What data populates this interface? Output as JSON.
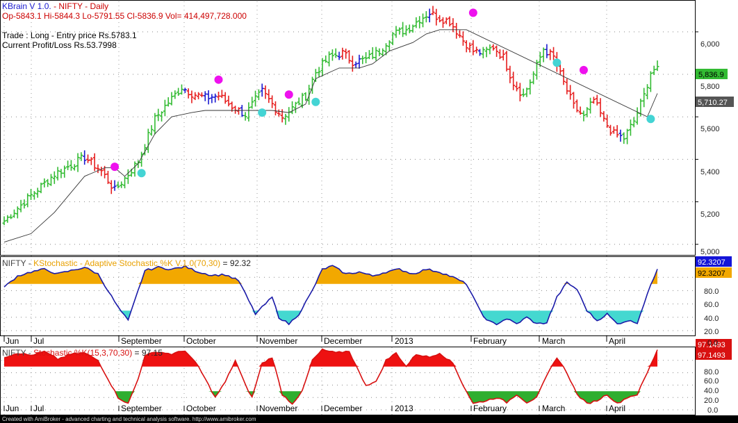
{
  "header": {
    "app": "KBrain V 1.0.",
    "symbol_line": "- NIFTY - Daily",
    "ohlc": "Op-5843.1  Hi-5844.3  Lo-5791.55  Cl-5836.9  Vol= 414,497,728.000",
    "trade": "Trade : Long - Entry price Rs.5783.1",
    "pnl": "Current Profit/Loss Rs.53.7998"
  },
  "panel1_title": {
    "symbol": "NIFTY - ",
    "name": "KStochastic - Adaptive Stochastic %K V.1.0(70,30)",
    "value": " = 92.32"
  },
  "panel2_title": {
    "symbol": "NIFTY - ",
    "name": "Stochastic %K(15,3,70,30)",
    "value": " = 97.15"
  },
  "footer": "Created with AmiBroker - advanced charting and technical analysis software. http://www.amibroker.com",
  "months": [
    "Jun",
    "Jul",
    "September",
    "October",
    "November",
    "December",
    "2013",
    "February",
    "March",
    "April"
  ],
  "colors": {
    "up": "#33bb33",
    "down": "#e61e1e",
    "neutral": "#1a1ad0",
    "stop": "#333333",
    "buy_marker": "#44d4d4",
    "sell_marker": "#ee11ee",
    "kstoch_line": "#1a1aa8",
    "kstoch_fill_high": "#f2a800",
    "kstoch_fill_low": "#44d8d0",
    "stoch_line": "#d81010",
    "stoch_fill_high": "#ee1111",
    "stoch_fill_low": "#2fae2f"
  },
  "chart_data": [
    {
      "type": "ohlc",
      "title": "NIFTY - Daily",
      "ylim": [
        4950,
        6150
      ],
      "y_ticks": [
        "5,000",
        "5,200",
        "5,400",
        "5,600",
        "5,800",
        "6,000"
      ],
      "labels": [
        "5,836.9",
        "5,710.27"
      ],
      "last_close": 5836.9,
      "trailing_stop_last": 5710.27,
      "trend_waypoints": [
        {
          "x": 0,
          "y": 5110
        },
        {
          "x": 8,
          "y": 5230
        },
        {
          "x": 15,
          "y": 5330
        },
        {
          "x": 24,
          "y": 5410
        },
        {
          "x": 29,
          "y": 5345
        },
        {
          "x": 33,
          "y": 5255
        },
        {
          "x": 36,
          "y": 5310
        },
        {
          "x": 40,
          "y": 5390
        },
        {
          "x": 45,
          "y": 5590
        },
        {
          "x": 48,
          "y": 5650
        },
        {
          "x": 53,
          "y": 5740
        },
        {
          "x": 56,
          "y": 5710
        },
        {
          "x": 60,
          "y": 5690
        },
        {
          "x": 64,
          "y": 5700
        },
        {
          "x": 68,
          "y": 5650
        },
        {
          "x": 72,
          "y": 5610
        },
        {
          "x": 75,
          "y": 5680
        },
        {
          "x": 77,
          "y": 5720
        },
        {
          "x": 80,
          "y": 5660
        },
        {
          "x": 83,
          "y": 5600
        },
        {
          "x": 86,
          "y": 5640
        },
        {
          "x": 90,
          "y": 5700
        },
        {
          "x": 93,
          "y": 5810
        },
        {
          "x": 97,
          "y": 5880
        },
        {
          "x": 101,
          "y": 5900
        },
        {
          "x": 104,
          "y": 5860
        },
        {
          "x": 108,
          "y": 5870
        },
        {
          "x": 112,
          "y": 5910
        },
        {
          "x": 116,
          "y": 5990
        },
        {
          "x": 120,
          "y": 6010
        },
        {
          "x": 124,
          "y": 6060
        },
        {
          "x": 127,
          "y": 6090
        },
        {
          "x": 130,
          "y": 6065
        },
        {
          "x": 133,
          "y": 6050
        },
        {
          "x": 137,
          "y": 5960
        },
        {
          "x": 140,
          "y": 5910
        },
        {
          "x": 143,
          "y": 5900
        },
        {
          "x": 146,
          "y": 5930
        },
        {
          "x": 149,
          "y": 5880
        },
        {
          "x": 152,
          "y": 5760
        },
        {
          "x": 155,
          "y": 5700
        },
        {
          "x": 158,
          "y": 5800
        },
        {
          "x": 161,
          "y": 5920
        },
        {
          "x": 164,
          "y": 5880
        },
        {
          "x": 167,
          "y": 5760
        },
        {
          "x": 170,
          "y": 5650
        },
        {
          "x": 173,
          "y": 5600
        },
        {
          "x": 176,
          "y": 5680
        },
        {
          "x": 179,
          "y": 5580
        },
        {
          "x": 182,
          "y": 5520
        },
        {
          "x": 185,
          "y": 5500
        },
        {
          "x": 188,
          "y": 5580
        },
        {
          "x": 191,
          "y": 5700
        },
        {
          "x": 193,
          "y": 5810
        },
        {
          "x": 195,
          "y": 5836.9
        }
      ],
      "trailing_stop_points": [
        {
          "x": 0,
          "y": 5010
        },
        {
          "x": 8,
          "y": 5050
        },
        {
          "x": 15,
          "y": 5150
        },
        {
          "x": 24,
          "y": 5320
        },
        {
          "x": 30,
          "y": 5360
        },
        {
          "x": 33,
          "y": 5360
        },
        {
          "x": 36,
          "y": 5320
        },
        {
          "x": 40,
          "y": 5380
        },
        {
          "x": 45,
          "y": 5520
        },
        {
          "x": 50,
          "y": 5600
        },
        {
          "x": 56,
          "y": 5620
        },
        {
          "x": 60,
          "y": 5630
        },
        {
          "x": 72,
          "y": 5630
        },
        {
          "x": 80,
          "y": 5630
        },
        {
          "x": 85,
          "y": 5620
        },
        {
          "x": 90,
          "y": 5660
        },
        {
          "x": 93,
          "y": 5780
        },
        {
          "x": 100,
          "y": 5830
        },
        {
          "x": 106,
          "y": 5830
        },
        {
          "x": 110,
          "y": 5850
        },
        {
          "x": 115,
          "y": 5910
        },
        {
          "x": 122,
          "y": 5950
        },
        {
          "x": 126,
          "y": 5990
        },
        {
          "x": 130,
          "y": 6010
        },
        {
          "x": 138,
          "y": 6010
        },
        {
          "x": 192,
          "y": 5600
        },
        {
          "x": 195,
          "y": 5710.27
        }
      ],
      "buy_signals": [
        {
          "x": 41,
          "y": 5335
        },
        {
          "x": 77,
          "y": 5620
        },
        {
          "x": 93,
          "y": 5670
        },
        {
          "x": 165,
          "y": 5855
        },
        {
          "x": 193,
          "y": 5590
        }
      ],
      "sell_signals": [
        {
          "x": 33,
          "y": 5365
        },
        {
          "x": 64,
          "y": 5775
        },
        {
          "x": 85,
          "y": 5705
        },
        {
          "x": 140,
          "y": 6090
        },
        {
          "x": 173,
          "y": 5820
        }
      ]
    },
    {
      "type": "area",
      "title": "KStochastic - Adaptive Stochastic %K V.1.0(70,30)",
      "ylim": [
        0,
        100
      ],
      "y_ticks": [
        "0.0",
        "20.0",
        "40.0",
        "60.0",
        "80.0"
      ],
      "thresholds": [
        70,
        30
      ],
      "labels": [
        "92.3207",
        "92.3207"
      ],
      "last_value": 92.32,
      "points": [
        {
          "x": 0,
          "y": 65
        },
        {
          "x": 4,
          "y": 82
        },
        {
          "x": 8,
          "y": 88
        },
        {
          "x": 12,
          "y": 92
        },
        {
          "x": 16,
          "y": 85
        },
        {
          "x": 20,
          "y": 90
        },
        {
          "x": 24,
          "y": 95
        },
        {
          "x": 28,
          "y": 85
        },
        {
          "x": 31,
          "y": 60
        },
        {
          "x": 34,
          "y": 35
        },
        {
          "x": 37,
          "y": 15
        },
        {
          "x": 40,
          "y": 60
        },
        {
          "x": 42,
          "y": 90
        },
        {
          "x": 46,
          "y": 95
        },
        {
          "x": 50,
          "y": 92
        },
        {
          "x": 54,
          "y": 96
        },
        {
          "x": 58,
          "y": 88
        },
        {
          "x": 62,
          "y": 83
        },
        {
          "x": 66,
          "y": 84
        },
        {
          "x": 70,
          "y": 75
        },
        {
          "x": 73,
          "y": 45
        },
        {
          "x": 75,
          "y": 25
        },
        {
          "x": 78,
          "y": 40
        },
        {
          "x": 80,
          "y": 50
        },
        {
          "x": 82,
          "y": 20
        },
        {
          "x": 85,
          "y": 10
        },
        {
          "x": 88,
          "y": 25
        },
        {
          "x": 92,
          "y": 60
        },
        {
          "x": 95,
          "y": 92
        },
        {
          "x": 98,
          "y": 97
        },
        {
          "x": 102,
          "y": 85
        },
        {
          "x": 106,
          "y": 88
        },
        {
          "x": 110,
          "y": 82
        },
        {
          "x": 114,
          "y": 88
        },
        {
          "x": 118,
          "y": 92
        },
        {
          "x": 122,
          "y": 85
        },
        {
          "x": 126,
          "y": 92
        },
        {
          "x": 130,
          "y": 88
        },
        {
          "x": 134,
          "y": 80
        },
        {
          "x": 138,
          "y": 70
        },
        {
          "x": 141,
          "y": 40
        },
        {
          "x": 144,
          "y": 15
        },
        {
          "x": 147,
          "y": 10
        },
        {
          "x": 150,
          "y": 18
        },
        {
          "x": 153,
          "y": 10
        },
        {
          "x": 156,
          "y": 20
        },
        {
          "x": 159,
          "y": 10
        },
        {
          "x": 162,
          "y": 12
        },
        {
          "x": 165,
          "y": 50
        },
        {
          "x": 168,
          "y": 72
        },
        {
          "x": 171,
          "y": 62
        },
        {
          "x": 174,
          "y": 30
        },
        {
          "x": 177,
          "y": 15
        },
        {
          "x": 180,
          "y": 25
        },
        {
          "x": 183,
          "y": 10
        },
        {
          "x": 186,
          "y": 15
        },
        {
          "x": 189,
          "y": 12
        },
        {
          "x": 192,
          "y": 55
        },
        {
          "x": 195,
          "y": 92.32
        }
      ]
    },
    {
      "type": "area",
      "title": "Stochastic %K(15,3,70,30)",
      "ylim": [
        0,
        100
      ],
      "y_ticks": [
        "0.0",
        "20.0",
        "40.0",
        "60.0",
        "80.0"
      ],
      "thresholds": [
        70,
        30
      ],
      "labels": [
        "97.1493",
        "97.1493"
      ],
      "last_value": 97.15,
      "points": [
        {
          "x": 0,
          "y": 85
        },
        {
          "x": 4,
          "y": 92
        },
        {
          "x": 8,
          "y": 88
        },
        {
          "x": 12,
          "y": 94
        },
        {
          "x": 16,
          "y": 82
        },
        {
          "x": 20,
          "y": 90
        },
        {
          "x": 24,
          "y": 92
        },
        {
          "x": 28,
          "y": 80
        },
        {
          "x": 31,
          "y": 50
        },
        {
          "x": 34,
          "y": 20
        },
        {
          "x": 37,
          "y": 10
        },
        {
          "x": 40,
          "y": 50
        },
        {
          "x": 42,
          "y": 88
        },
        {
          "x": 46,
          "y": 94
        },
        {
          "x": 50,
          "y": 90
        },
        {
          "x": 54,
          "y": 96
        },
        {
          "x": 58,
          "y": 70
        },
        {
          "x": 61,
          "y": 40
        },
        {
          "x": 63,
          "y": 20
        },
        {
          "x": 66,
          "y": 45
        },
        {
          "x": 69,
          "y": 80
        },
        {
          "x": 72,
          "y": 40
        },
        {
          "x": 74,
          "y": 20
        },
        {
          "x": 77,
          "y": 75
        },
        {
          "x": 80,
          "y": 85
        },
        {
          "x": 83,
          "y": 25
        },
        {
          "x": 86,
          "y": 10
        },
        {
          "x": 89,
          "y": 30
        },
        {
          "x": 92,
          "y": 80
        },
        {
          "x": 95,
          "y": 97
        },
        {
          "x": 99,
          "y": 92
        },
        {
          "x": 103,
          "y": 95
        },
        {
          "x": 106,
          "y": 60
        },
        {
          "x": 108,
          "y": 40
        },
        {
          "x": 111,
          "y": 45
        },
        {
          "x": 114,
          "y": 80
        },
        {
          "x": 117,
          "y": 92
        },
        {
          "x": 120,
          "y": 70
        },
        {
          "x": 123,
          "y": 90
        },
        {
          "x": 127,
          "y": 85
        },
        {
          "x": 130,
          "y": 92
        },
        {
          "x": 134,
          "y": 75
        },
        {
          "x": 137,
          "y": 40
        },
        {
          "x": 140,
          "y": 10
        },
        {
          "x": 144,
          "y": 15
        },
        {
          "x": 147,
          "y": 20
        },
        {
          "x": 150,
          "y": 12
        },
        {
          "x": 153,
          "y": 25
        },
        {
          "x": 156,
          "y": 12
        },
        {
          "x": 159,
          "y": 20
        },
        {
          "x": 162,
          "y": 55
        },
        {
          "x": 165,
          "y": 85
        },
        {
          "x": 168,
          "y": 60
        },
        {
          "x": 171,
          "y": 25
        },
        {
          "x": 174,
          "y": 10
        },
        {
          "x": 177,
          "y": 15
        },
        {
          "x": 180,
          "y": 25
        },
        {
          "x": 183,
          "y": 10
        },
        {
          "x": 186,
          "y": 20
        },
        {
          "x": 189,
          "y": 25
        },
        {
          "x": 192,
          "y": 60
        },
        {
          "x": 195,
          "y": 97.15
        }
      ]
    }
  ]
}
